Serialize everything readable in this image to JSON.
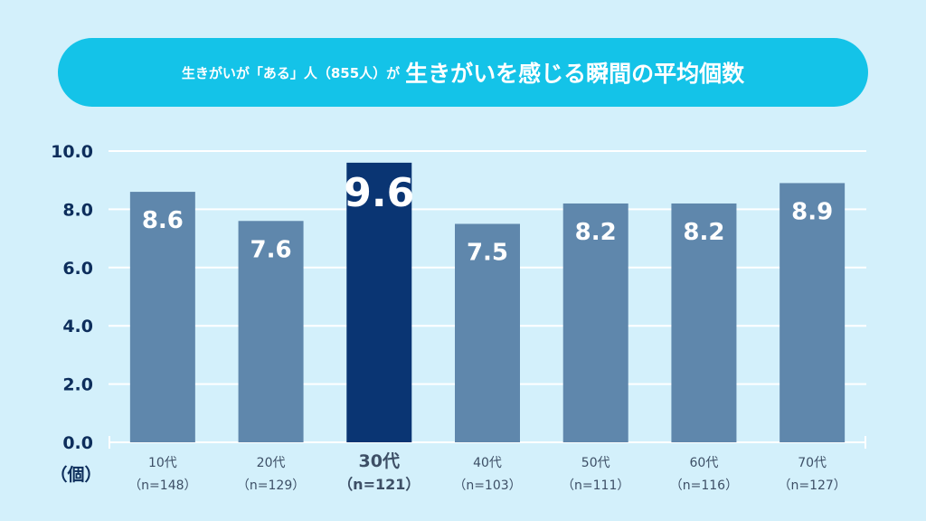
{
  "header": {
    "title_prefix": "生きがいが「ある」人（855人）が",
    "title_main": "生きがいを感じる瞬間の平均個数"
  },
  "chart_data": {
    "type": "bar",
    "categories": [
      "10代",
      "20代",
      "30代",
      "40代",
      "50代",
      "60代",
      "70代"
    ],
    "sample_sizes": [
      "（n=148）",
      "（n=129）",
      "（n=121）",
      "（n=103）",
      "（n=111）",
      "（n=116）",
      "（n=127）"
    ],
    "values": [
      8.6,
      7.6,
      9.6,
      7.5,
      8.2,
      8.2,
      8.9
    ],
    "value_labels": [
      "8.6",
      "7.6",
      "9.6",
      "7.5",
      "8.2",
      "8.2",
      "8.9"
    ],
    "highlight_index": 2,
    "ylim": [
      0,
      10
    ],
    "yticks": [
      "0.0",
      "2.0",
      "4.0",
      "6.0",
      "8.0",
      "10.0"
    ],
    "ylabel": "（個）",
    "grid": true,
    "colors": {
      "bar": "#5f87ac",
      "highlight": "#0a3573",
      "grid": "#ffffff",
      "axis_text": "#0d2e5c"
    }
  }
}
